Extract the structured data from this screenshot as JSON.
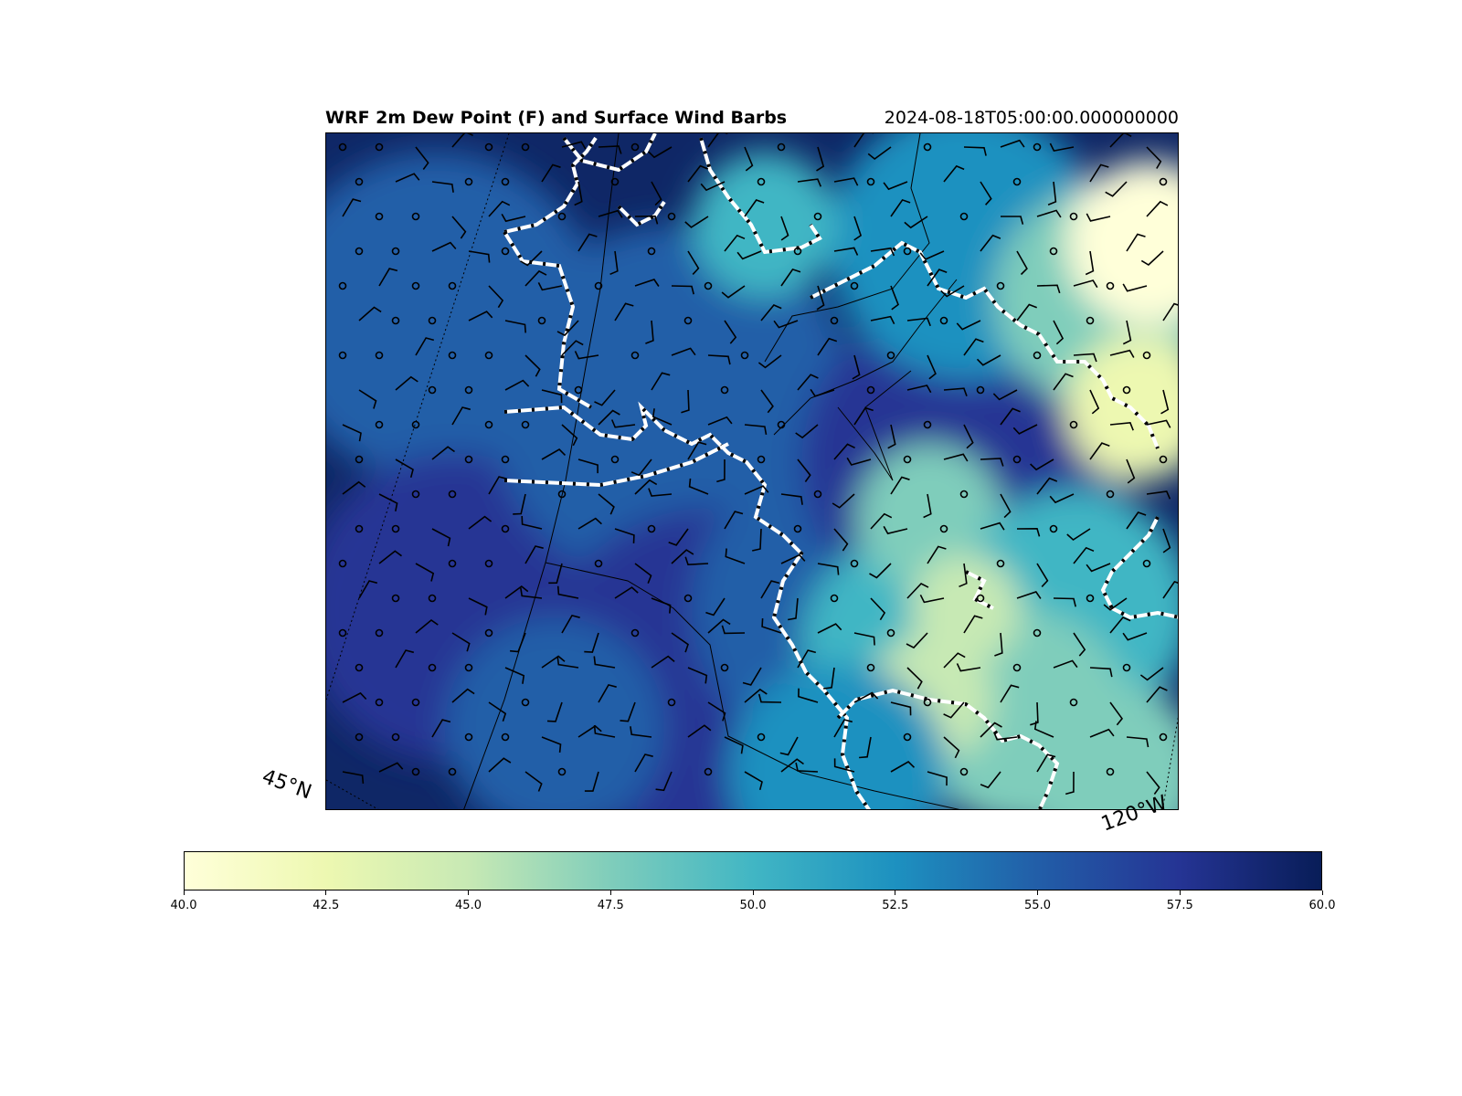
{
  "header": {
    "title": "WRF 2m Dew Point (F) and Surface Wind Barbs",
    "timestamp": "2024-08-18T05:00:00.000000000"
  },
  "map": {
    "lat_label": "45°N",
    "lon_label": "120°W",
    "contour_style": "white-black dashed",
    "barb_color": "#000000"
  },
  "colorbar": {
    "min": 40.0,
    "max": 60.0,
    "ticks": [
      "40.0",
      "42.5",
      "45.0",
      "47.5",
      "50.0",
      "52.5",
      "55.0",
      "57.5",
      "60.0"
    ],
    "colormap": "YlGnBu",
    "colors": [
      "#ffffd9",
      "#edf8b1",
      "#c7e9b4",
      "#7fcdbb",
      "#41b6c4",
      "#1d91c0",
      "#225ea8",
      "#253494",
      "#081d58"
    ]
  }
}
